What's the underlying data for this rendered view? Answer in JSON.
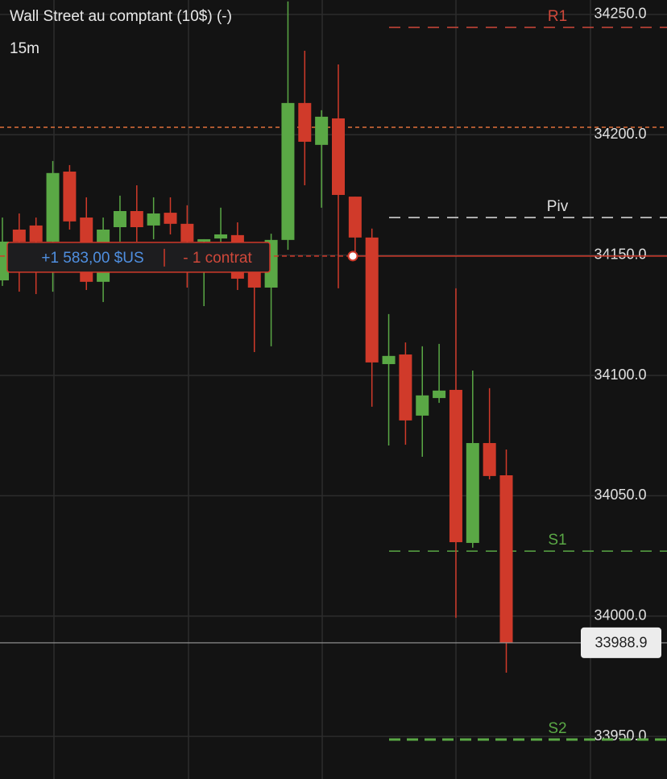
{
  "chart_data": {
    "type": "candlestick",
    "title": "Wall Street au comptant (10$) (-)",
    "timeframe": "15m",
    "ylim": [
      33932.3,
      34256.0
    ],
    "yticks": [
      {
        "value": 34250,
        "label": "34250.0"
      },
      {
        "value": 34200,
        "label": "34200.0"
      },
      {
        "value": 34150,
        "label": "34150.0"
      },
      {
        "value": 34100,
        "label": "34100.0"
      },
      {
        "value": 34050,
        "label": "34050.0"
      },
      {
        "value": 34000,
        "label": "34000.0"
      },
      {
        "value": 33950,
        "label": "33950.0"
      }
    ],
    "grid": true,
    "up_color": "#5aa845",
    "down_color": "#d03a2a",
    "open": [
      34139.5,
      34160.6,
      34162.3,
      34155.6,
      34184.7,
      34165.6,
      34138.9,
      34161.6,
      34168.3,
      34162.3,
      34167.6,
      34163.0,
      34155.6,
      34156.9,
      34158.3,
      34142.9,
      34136.5,
      34156.3,
      34213.2,
      34195.8,
      34206.8,
      34174.3,
      34157.3,
      34104.7,
      34108.7,
      34083.3,
      34090.6,
      34094.0,
      34030.4,
      34071.9,
      34058.5
    ],
    "high": [
      34165.6,
      34167.3,
      34165.6,
      34189.1,
      34187.4,
      34174.0,
      34165.6,
      34174.7,
      34179.0,
      34174.0,
      34174.0,
      34170.7,
      34156.6,
      34169.7,
      34163.6,
      34147.2,
      34158.9,
      34255.4,
      34234.9,
      34210.2,
      34229.2,
      34174.3,
      34161.0,
      34125.5,
      34113.7,
      34112.1,
      34113.1,
      34136.2,
      34102.0,
      34094.7,
      34069.2
    ],
    "low": [
      34137.2,
      34134.8,
      34133.8,
      34134.8,
      34160.6,
      34135.5,
      34130.5,
      34155.6,
      34155.6,
      34156.6,
      34158.6,
      34136.5,
      34128.8,
      34143.9,
      34135.5,
      34109.7,
      34112.1,
      34152.2,
      34179.0,
      34169.7,
      34136.2,
      34149.6,
      34087.0,
      34070.9,
      34071.2,
      34066.2,
      34088.6,
      33999.3,
      34028.4,
      34056.8,
      33976.5
    ],
    "close": [
      34155.6,
      34155.6,
      34155.6,
      34184.1,
      34164.0,
      34138.9,
      34160.6,
      34168.3,
      34161.6,
      34167.3,
      34163.0,
      34155.6,
      34156.6,
      34158.6,
      34140.2,
      34136.5,
      34156.3,
      34213.2,
      34197.1,
      34207.5,
      34175.0,
      34157.3,
      34105.4,
      34108.1,
      34081.3,
      34091.7,
      34093.7,
      34030.7,
      34071.9,
      34058.2,
      33988.9
    ],
    "levels": [
      {
        "name": "R1",
        "value": 34244.6,
        "color": "#d0483a"
      },
      {
        "name": "Piv",
        "value": 34165.6,
        "color": "#e0e0e0"
      },
      {
        "name": "S1",
        "value": 34027.0,
        "color": "#5aa845"
      },
      {
        "name": "S2",
        "value": 33948.7,
        "color": "#5aa845"
      }
    ],
    "reference_line": {
      "value": 34203.1,
      "color": "#e0703a"
    },
    "position": {
      "value": 34149.6,
      "pnl": "+1 583,00 $US",
      "size": "- 1 contrat",
      "color": "#d03a2a"
    }
  }
}
